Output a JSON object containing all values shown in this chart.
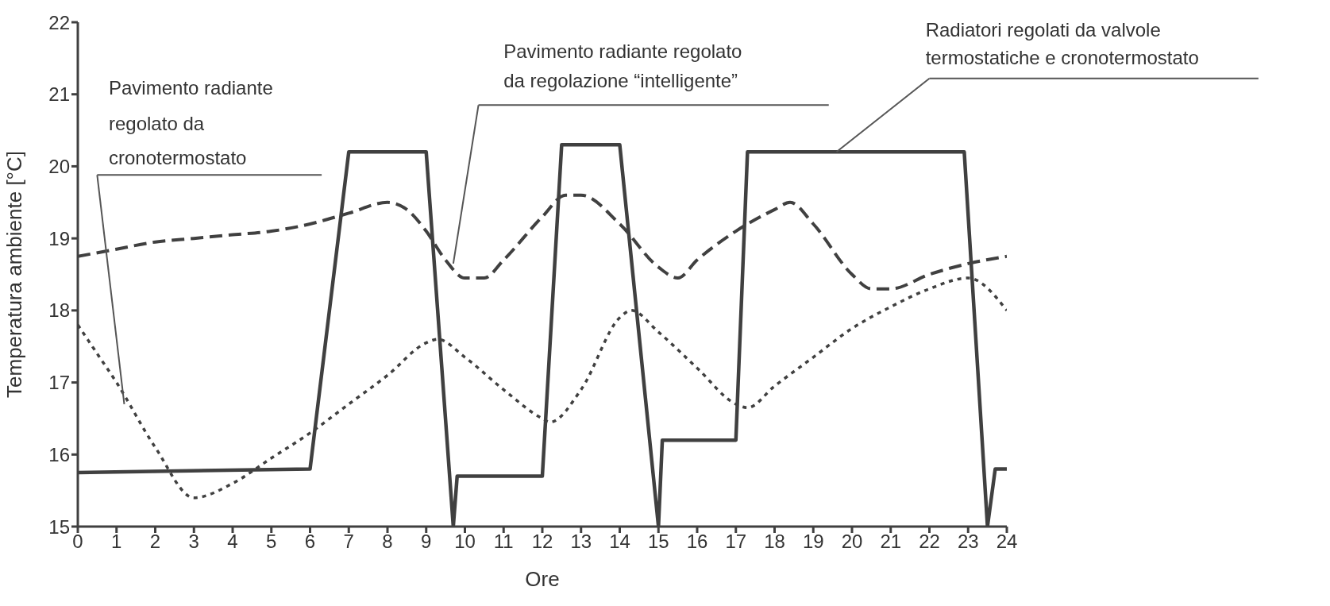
{
  "chart_data": {
    "type": "line",
    "xlabel": "Ore",
    "ylabel": "Temperatura ambiente [°C]",
    "xlim": [
      0,
      24
    ],
    "xticks": [
      0,
      1,
      2,
      3,
      4,
      5,
      6,
      7,
      8,
      9,
      10,
      11,
      12,
      13,
      14,
      15,
      16,
      17,
      18,
      19,
      20,
      21,
      22,
      23,
      24
    ],
    "ylim": [
      15,
      22
    ],
    "yticks": [
      15,
      16,
      17,
      18,
      19,
      20,
      21,
      22
    ],
    "marker": "none",
    "series": [
      {
        "color": "#404040",
        "line_style": "solid",
        "x": [
          0,
          6,
          7,
          9,
          9.7,
          9.8,
          12,
          12.5,
          14,
          15,
          15.1,
          17,
          17.3,
          22.9,
          23.5,
          23.7,
          24
        ],
        "values": [
          15.75,
          15.8,
          20.2,
          20.2,
          15,
          15.7,
          15.7,
          20.3,
          20.3,
          15,
          16.2,
          16.2,
          20.2,
          20.2,
          15,
          15.8,
          15.8
        ]
      },
      {
        "color": "#404040",
        "line_style": "dashed",
        "x": [
          0,
          1,
          2,
          3,
          4,
          5,
          6,
          7,
          8,
          8.5,
          9,
          9.5,
          10,
          10.5,
          11,
          12,
          12.6,
          13,
          14,
          15,
          15.5,
          16,
          17,
          18,
          18.4,
          19,
          20,
          20.5,
          21,
          22,
          23,
          24
        ],
        "values": [
          18.75,
          18.85,
          18.95,
          19,
          19.05,
          19.1,
          19.2,
          19.35,
          19.5,
          19.4,
          19.1,
          18.7,
          18.45,
          18.45,
          18.7,
          19.3,
          19.6,
          19.6,
          19.2,
          18.6,
          18.45,
          18.7,
          19.1,
          19.4,
          19.5,
          19.2,
          18.5,
          18.3,
          18.3,
          18.5,
          18.65,
          18.75
        ]
      },
      {
        "color": "#404040",
        "line_style": "dotted",
        "x": [
          0,
          0.5,
          1,
          2,
          3,
          4,
          5,
          6,
          7,
          8,
          9,
          9.3,
          10,
          11,
          12,
          12.2,
          13,
          14,
          14.3,
          15,
          16,
          17,
          17.3,
          18,
          19,
          20,
          21,
          22,
          23,
          24
        ],
        "values": [
          17.8,
          17.4,
          17,
          16.1,
          15.4,
          15.6,
          15.95,
          16.3,
          16.7,
          17.1,
          17.55,
          17.6,
          17.35,
          16.9,
          16.5,
          16.45,
          16.9,
          17.9,
          18,
          17.7,
          17.2,
          16.7,
          16.65,
          16.95,
          17.35,
          17.75,
          18.05,
          18.3,
          18.45,
          18
        ]
      }
    ],
    "annotations": [
      {
        "text": "Pavimento radiante\nregolato da\ncronotermostato",
        "x": 1.2,
        "y": 16.7
      },
      "Pavimento radiante regolato\nda regolazione “intelligente”",
      {
        "text": "Radiatori regolati da valvole\ntermostatiche e cronotermostato",
        "x": 19.6,
        "y": 20.2
      }
    ]
  }
}
